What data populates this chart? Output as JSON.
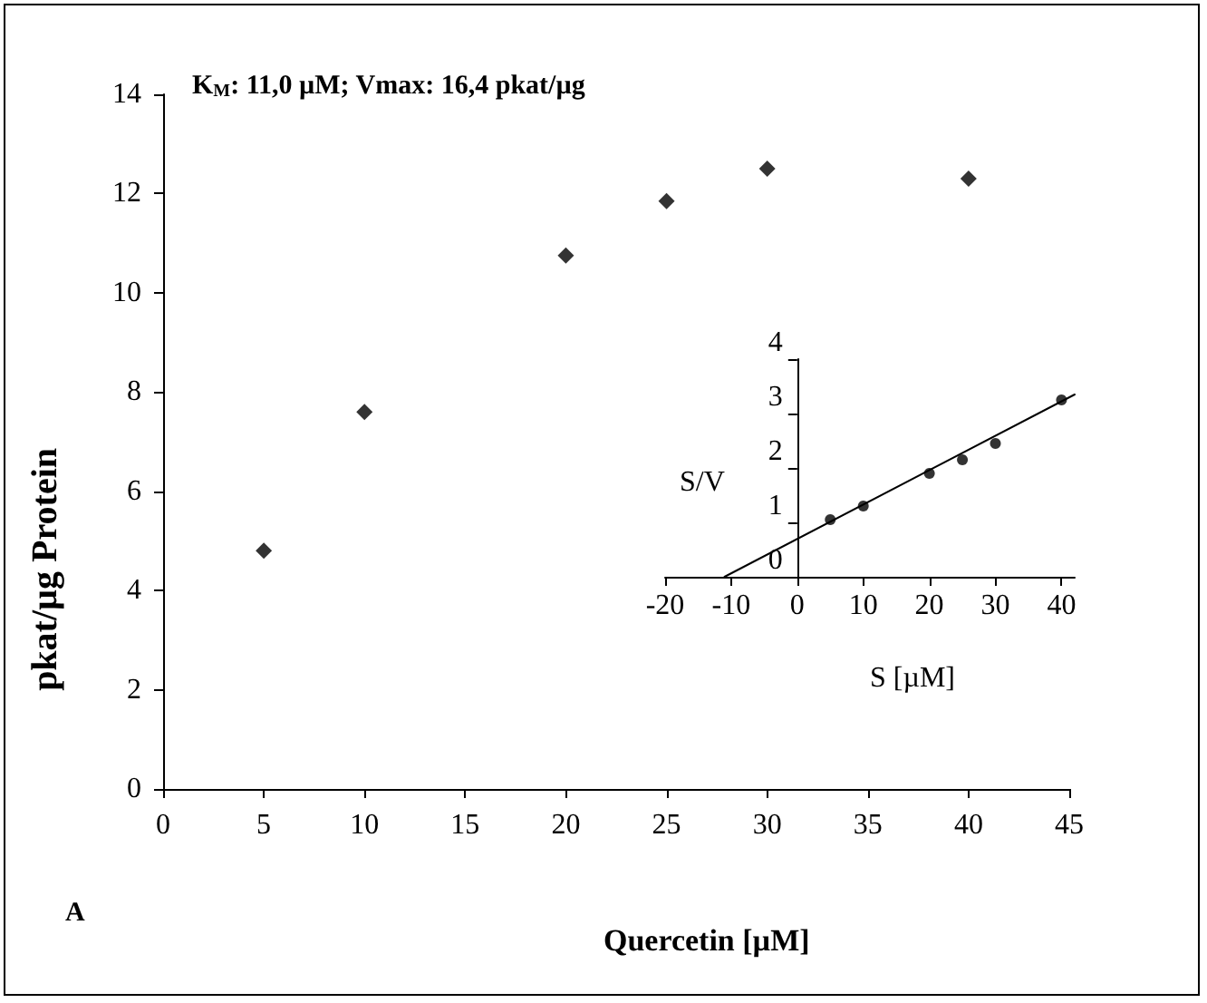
{
  "chart_data": [
    {
      "type": "scatter",
      "xlabel": "Quercetin [µM]",
      "ylabel": "pkat/µg Protein",
      "annotations": [
        "K$_{M}$: 11,0 µM; Vmax: 16,4 pkat/µg",
        "A"
      ],
      "x": [
        5,
        10,
        20,
        25,
        30,
        40
      ],
      "values": [
        4.8,
        7.6,
        10.75,
        11.85,
        12.5,
        12.3
      ],
      "color": "#000000",
      "marker": "diamond",
      "xlim": [
        0,
        45
      ],
      "xticks": [
        0,
        5,
        10,
        15,
        20,
        25,
        30,
        35,
        40,
        45
      ],
      "ylim": [
        0,
        14
      ],
      "yticks": [
        0,
        2,
        4,
        6,
        8,
        10,
        12,
        14
      ],
      "grid": false
    },
    {
      "type": "scatter",
      "xlabel": "S [µM]",
      "ylabel": "S/V",
      "series": [
        {
          "x": [
            5,
            10,
            20,
            25,
            30,
            40
          ],
          "values": [
            1.05,
            1.3,
            1.9,
            2.15,
            2.45,
            3.25
          ],
          "color": "#000000",
          "marker": "circle"
        },
        {
          "type": "line",
          "x": [
            -11,
            42
          ],
          "values": [
            0,
            3.35
          ],
          "color": "#000000",
          "marker": "none",
          "line_style": "solid"
        }
      ],
      "xlim": [
        -20,
        42
      ],
      "xticks": [
        -20,
        -10,
        0,
        10,
        20,
        30,
        40
      ],
      "ylim": [
        0,
        4
      ],
      "yticks": [
        0,
        1,
        2,
        3,
        4
      ],
      "grid": false
    }
  ]
}
